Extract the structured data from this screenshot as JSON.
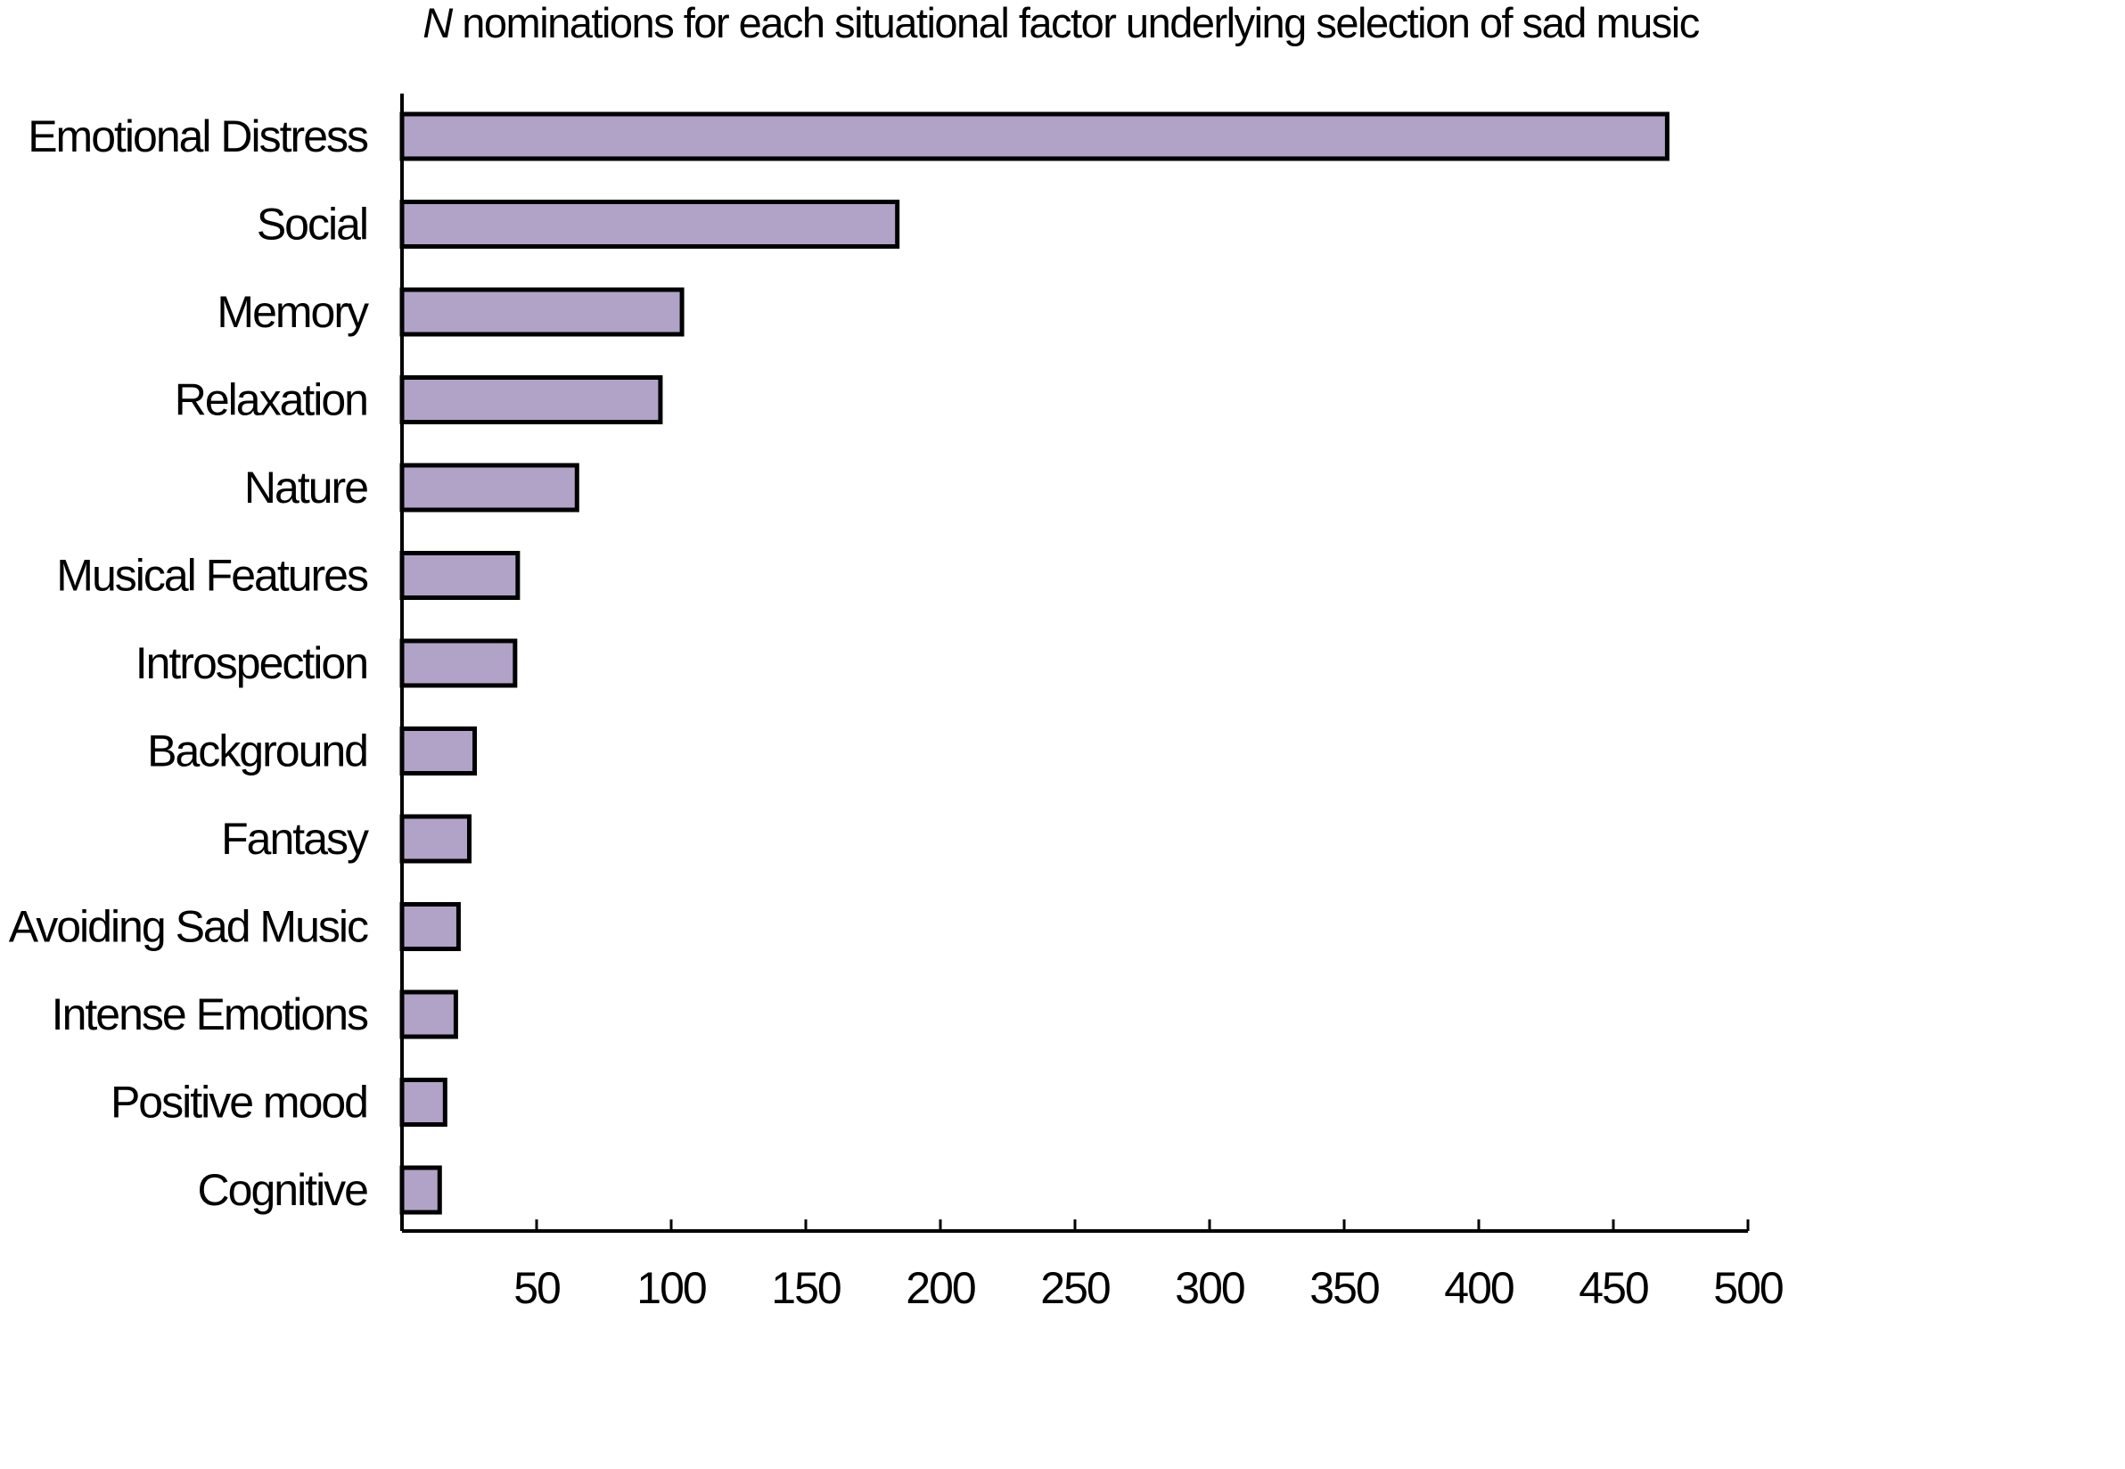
{
  "chart_data": {
    "type": "bar",
    "orientation": "horizontal",
    "title": {
      "italic_prefix": "N",
      "text": " nominations for each situational factor underlying selection of sad music"
    },
    "categories": [
      "Emotional Distress",
      "Social",
      "Memory",
      "Relaxation",
      "Nature",
      "Musical Features",
      "Introspection",
      "Background",
      "Fantasy",
      "Avoiding Sad Music",
      "Intense Emotions",
      "Positive mood",
      "Cognitive"
    ],
    "values": [
      470,
      184,
      104,
      96,
      65,
      43,
      42,
      27,
      25,
      21,
      20,
      16,
      14
    ],
    "xlim": [
      0,
      500
    ],
    "xticks": [
      50,
      100,
      150,
      200,
      250,
      300,
      350,
      400,
      450,
      500
    ],
    "xlabel": "",
    "ylabel": "",
    "grid": false,
    "legend": "none",
    "colors": {
      "bar_fill": "#b1a2c7",
      "bar_stroke": "#000000"
    }
  }
}
